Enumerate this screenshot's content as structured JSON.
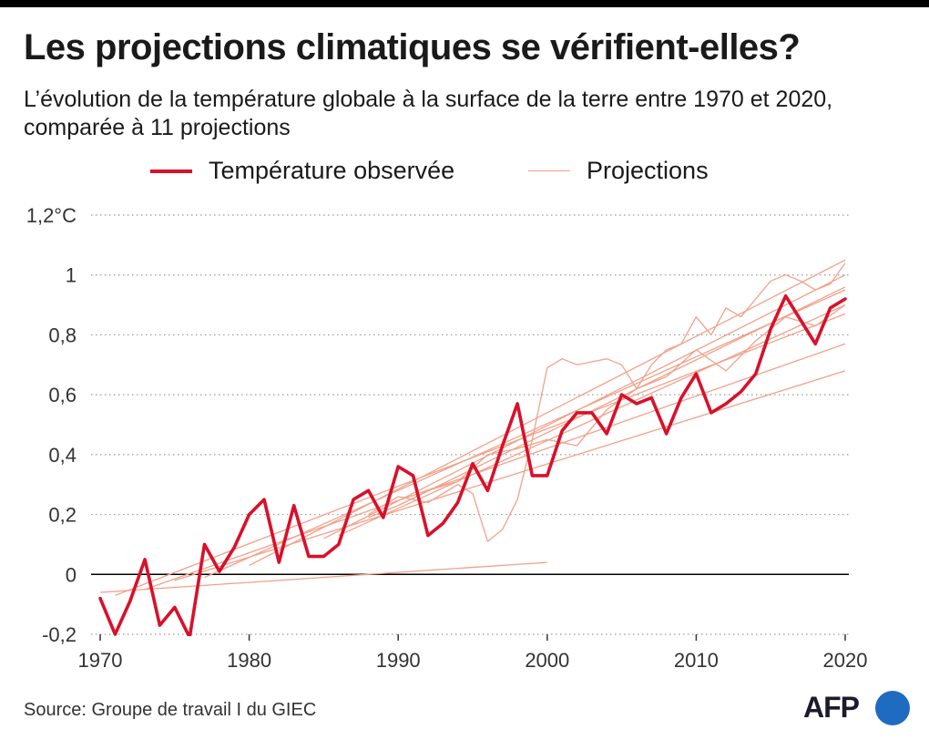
{
  "chart_data": {
    "type": "line",
    "title": "Les projections climatiques se vérifient-elles?",
    "subtitle": "L’évolution de la température globale à la surface de la terre entre 1970 et 2020, comparée à 11 projections",
    "xlabel": "",
    "ylabel": "",
    "xlim": [
      1970,
      2020
    ],
    "ylim": [
      -0.2,
      1.2
    ],
    "x_ticks": [
      "1970",
      "1980",
      "1990",
      "2000",
      "2010",
      "2020"
    ],
    "x_tick_values": [
      1970,
      1980,
      1990,
      2000,
      2010,
      2020
    ],
    "y_ticks": [
      "-0,2",
      "0",
      "0,2",
      "0,4",
      "0,6",
      "0,8",
      "1",
      "1,2°C"
    ],
    "y_tick_values": [
      -0.2,
      0,
      0.2,
      0.4,
      0.6,
      0.8,
      1.0,
      1.2
    ],
    "grid": "horizontal dotted",
    "legend_position": "top",
    "legend": {
      "observed": "Température observée",
      "projections": "Projections"
    },
    "colors": {
      "observed": "#d9102a",
      "projections": "#f2a189",
      "zero_line": "#000000",
      "grid": "#9a9a9a"
    },
    "observed": {
      "name": "Température observée",
      "x": [
        1970,
        1971,
        1972,
        1973,
        1974,
        1975,
        1976,
        1977,
        1978,
        1979,
        1980,
        1981,
        1982,
        1983,
        1984,
        1985,
        1986,
        1987,
        1988,
        1989,
        1990,
        1991,
        1992,
        1993,
        1994,
        1995,
        1996,
        1997,
        1998,
        1999,
        2000,
        2001,
        2002,
        2003,
        2004,
        2005,
        2006,
        2007,
        2008,
        2009,
        2010,
        2011,
        2012,
        2013,
        2014,
        2015,
        2016,
        2017,
        2018,
        2019,
        2020
      ],
      "y": [
        -0.08,
        -0.2,
        -0.09,
        0.05,
        -0.17,
        -0.11,
        -0.21,
        0.1,
        0.01,
        0.09,
        0.2,
        0.25,
        0.04,
        0.23,
        0.06,
        0.06,
        0.1,
        0.25,
        0.28,
        0.19,
        0.36,
        0.33,
        0.13,
        0.17,
        0.24,
        0.37,
        0.28,
        0.43,
        0.57,
        0.33,
        0.33,
        0.48,
        0.54,
        0.54,
        0.47,
        0.6,
        0.57,
        0.59,
        0.47,
        0.59,
        0.67,
        0.54,
        0.57,
        0.61,
        0.67,
        0.82,
        0.93,
        0.85,
        0.77,
        0.89,
        0.92
      ]
    },
    "projections": [
      {
        "x": [
          1970,
          2000
        ],
        "y": [
          -0.06,
          0.04
        ]
      },
      {
        "x": [
          1971,
          2020
        ],
        "y": [
          -0.07,
          0.87
        ]
      },
      {
        "x": [
          1973,
          2020
        ],
        "y": [
          -0.05,
          0.77
        ]
      },
      {
        "x": [
          1975,
          2020
        ],
        "y": [
          -0.02,
          0.68
        ]
      },
      {
        "x": [
          1977,
          2020
        ],
        "y": [
          -0.01,
          0.95
        ]
      },
      {
        "x": [
          1980,
          2020
        ],
        "y": [
          0.03,
          1.05
        ]
      },
      {
        "x": [
          1985,
          2020
        ],
        "y": [
          0.12,
          1.0
        ]
      },
      {
        "x": [
          1986,
          2020
        ],
        "y": [
          0.13,
          0.9
        ]
      },
      {
        "x": [
          1990,
          2020
        ],
        "y": [
          0.23,
          0.96
        ]
      },
      {
        "x": [
          1988,
          1990,
          1992,
          1994,
          1995,
          1996,
          1997,
          1998,
          1999,
          2000,
          2001,
          2002,
          2003,
          2004,
          2005,
          2006,
          2007,
          2008,
          2009,
          2010,
          2011,
          2012,
          2013,
          2014,
          2015,
          2016,
          2017,
          2018,
          2019,
          2020
        ],
        "y": [
          0.2,
          0.26,
          0.24,
          0.3,
          0.27,
          0.11,
          0.15,
          0.25,
          0.45,
          0.69,
          0.72,
          0.7,
          0.71,
          0.72,
          0.7,
          0.62,
          0.7,
          0.75,
          0.77,
          0.86,
          0.8,
          0.89,
          0.86,
          0.92,
          0.98,
          1.0,
          0.98,
          0.95,
          0.97,
          1.04
        ]
      },
      {
        "x": [
          1988,
          1990,
          1992,
          1994,
          1996,
          1998,
          2000,
          2002,
          2004,
          2006,
          2008,
          2010,
          2012,
          2014,
          2016,
          2018,
          2020
        ],
        "y": [
          0.19,
          0.23,
          0.28,
          0.31,
          0.4,
          0.42,
          0.45,
          0.43,
          0.55,
          0.62,
          0.66,
          0.75,
          0.68,
          0.78,
          0.86,
          0.83,
          0.9
        ]
      }
    ]
  },
  "source": "Source: Groupe de travail I du GIEC",
  "logo_text": "AFP"
}
